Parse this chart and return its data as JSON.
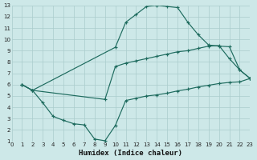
{
  "xlabel": "Humidex (Indice chaleur)",
  "xlim": [
    0,
    23
  ],
  "ylim": [
    1,
    13
  ],
  "xticks": [
    0,
    1,
    2,
    3,
    4,
    5,
    6,
    7,
    8,
    9,
    10,
    11,
    12,
    13,
    14,
    15,
    16,
    17,
    18,
    19,
    20,
    21,
    22,
    23
  ],
  "yticks": [
    1,
    2,
    3,
    4,
    5,
    6,
    7,
    8,
    9,
    10,
    11,
    12,
    13
  ],
  "bg_color": "#cde8e8",
  "line_color": "#1e6b5e",
  "grid_color": "#aacccc",
  "lines": [
    {
      "x": [
        1,
        2,
        3,
        4,
        5,
        6,
        7,
        8,
        9,
        10,
        11,
        12,
        13,
        14,
        15,
        16,
        17,
        18,
        19,
        20,
        21,
        22,
        23
      ],
      "y": [
        6.0,
        5.5,
        4.4,
        3.2,
        2.85,
        2.55,
        2.45,
        1.2,
        1.05,
        2.4,
        4.6,
        4.8,
        5.0,
        5.1,
        5.25,
        5.45,
        5.6,
        5.8,
        5.95,
        6.1,
        6.2,
        6.25,
        6.55
      ]
    },
    {
      "x": [
        1,
        2,
        10,
        11,
        12,
        13,
        14,
        15,
        16,
        17,
        18,
        19,
        20,
        21,
        22,
        23
      ],
      "y": [
        6.0,
        5.5,
        9.3,
        11.5,
        12.2,
        12.9,
        13.0,
        12.9,
        12.8,
        11.5,
        10.4,
        9.5,
        9.4,
        9.35,
        7.3,
        6.55
      ]
    },
    {
      "x": [
        1,
        2,
        9,
        10,
        11,
        12,
        13,
        14,
        15,
        16,
        17,
        18,
        19,
        20,
        21,
        22,
        23
      ],
      "y": [
        6.0,
        5.5,
        4.7,
        7.6,
        7.9,
        8.1,
        8.3,
        8.5,
        8.7,
        8.9,
        9.0,
        9.2,
        9.4,
        9.45,
        8.3,
        7.3,
        6.55
      ]
    }
  ]
}
